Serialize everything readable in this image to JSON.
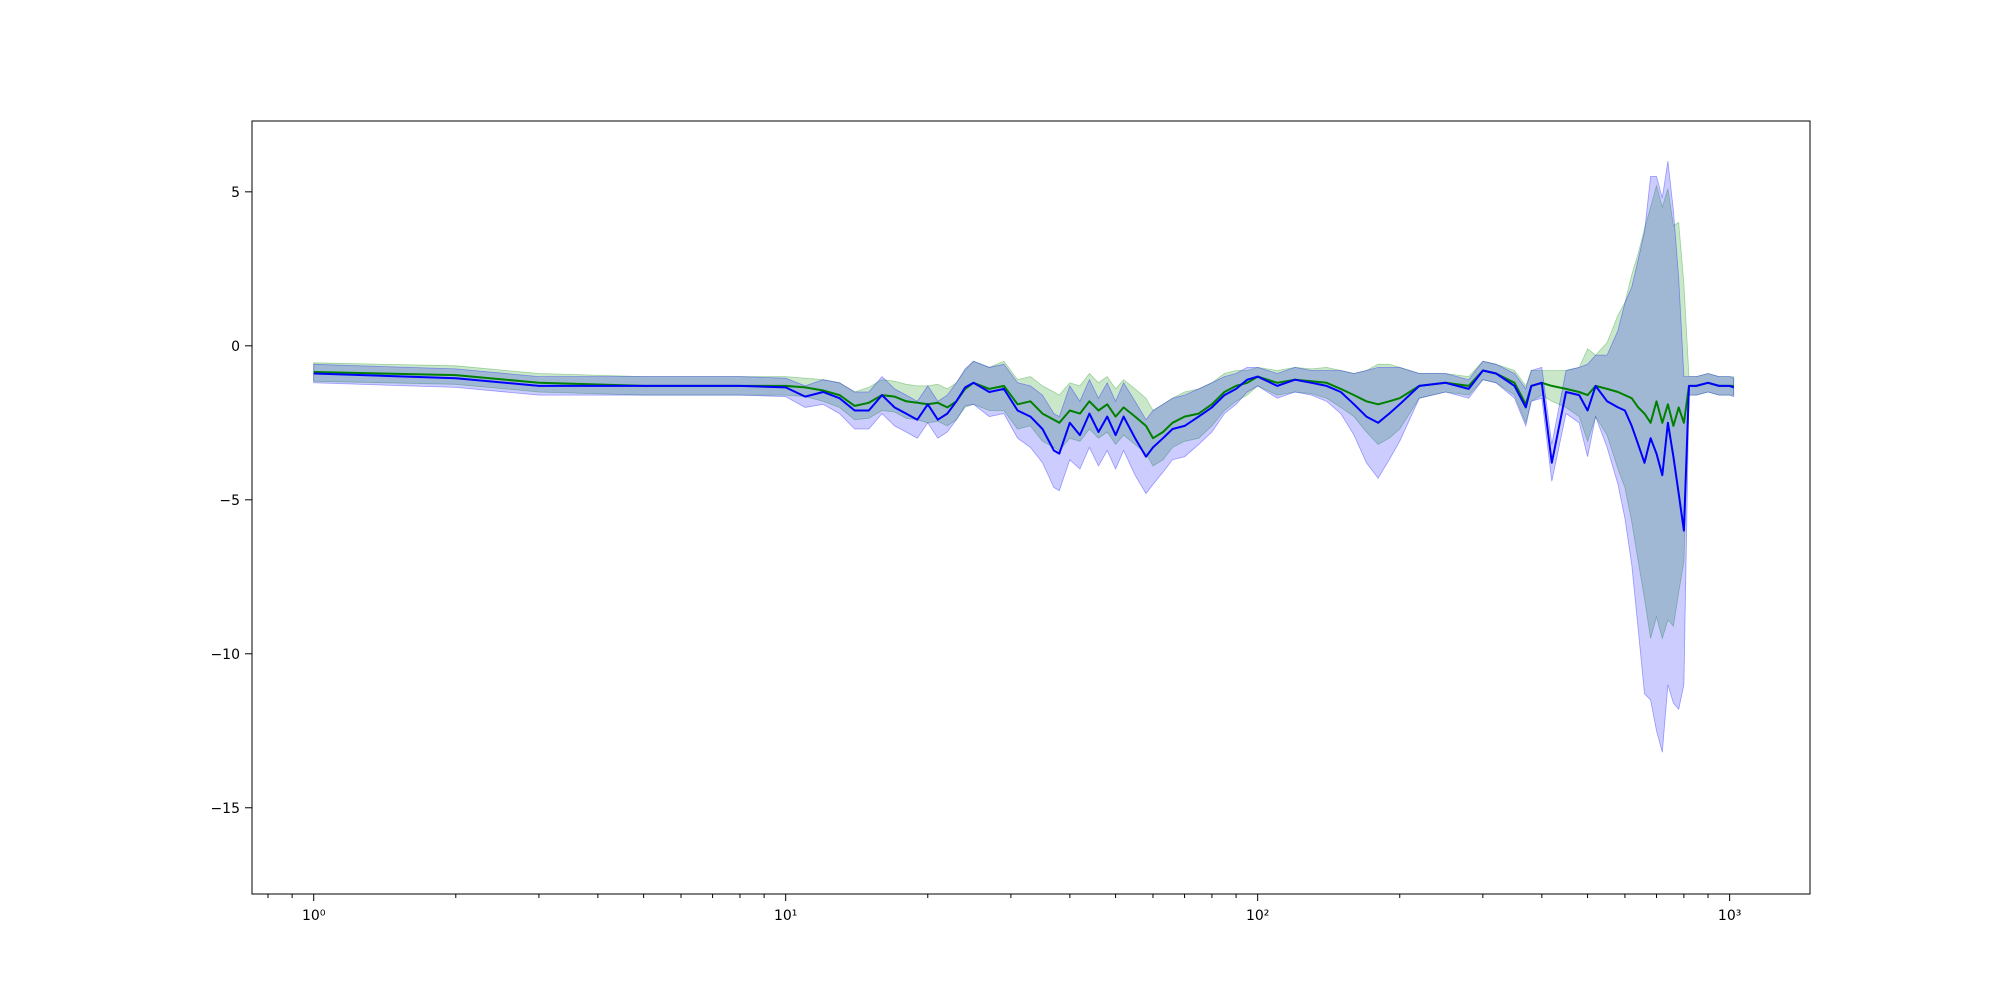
{
  "chart_data": {
    "type": "line",
    "title": "",
    "xlabel": "",
    "ylabel": "",
    "xscale": "log",
    "xlim": [
      0.74,
      1480
    ],
    "ylim": [
      -17.8,
      7.3
    ],
    "grid": false,
    "legend": "none",
    "x_ticks": [
      {
        "value": 1,
        "label": "10⁰"
      },
      {
        "value": 10,
        "label": "10¹"
      },
      {
        "value": 100,
        "label": "10²"
      },
      {
        "value": 1000,
        "label": "10³"
      }
    ],
    "y_ticks": [
      {
        "value": 5,
        "label": "5"
      },
      {
        "value": 0,
        "label": "0"
      },
      {
        "value": -5,
        "label": "−5"
      },
      {
        "value": -10,
        "label": "−10"
      },
      {
        "value": -15,
        "label": "−15"
      }
    ],
    "series": [
      {
        "color": "#008000",
        "band_color": "#2ca02c",
        "band_opacity": 0.25,
        "x": [
          1,
          2,
          3,
          5,
          8,
          10,
          11,
          12,
          13,
          14,
          15,
          16,
          17,
          18,
          19,
          20,
          21,
          22,
          23,
          24,
          25,
          27,
          29,
          31,
          33,
          35,
          37,
          38,
          40,
          42,
          44,
          46,
          48,
          50,
          52,
          55,
          58,
          60,
          63,
          66,
          70,
          75,
          80,
          85,
          90,
          95,
          100,
          110,
          120,
          130,
          140,
          150,
          160,
          170,
          180,
          190,
          200,
          220,
          250,
          280,
          300,
          320,
          350,
          370,
          380,
          400,
          420,
          450,
          480,
          500,
          520,
          550,
          580,
          600,
          620,
          640,
          660,
          680,
          700,
          720,
          740,
          760,
          780,
          800,
          820,
          850,
          900,
          950,
          1000,
          1020
        ],
        "y": [
          -0.85,
          -0.95,
          -1.2,
          -1.3,
          -1.3,
          -1.3,
          -1.35,
          -1.45,
          -1.6,
          -1.95,
          -1.85,
          -1.6,
          -1.65,
          -1.8,
          -1.85,
          -1.9,
          -1.85,
          -2.0,
          -1.8,
          -1.4,
          -1.2,
          -1.4,
          -1.3,
          -1.9,
          -1.8,
          -2.2,
          -2.4,
          -2.5,
          -2.1,
          -2.2,
          -1.8,
          -2.1,
          -1.9,
          -2.3,
          -2.0,
          -2.3,
          -2.6,
          -3.0,
          -2.8,
          -2.5,
          -2.3,
          -2.2,
          -1.9,
          -1.5,
          -1.3,
          -1.2,
          -1.0,
          -1.2,
          -1.1,
          -1.15,
          -1.2,
          -1.4,
          -1.6,
          -1.8,
          -1.9,
          -1.8,
          -1.7,
          -1.3,
          -1.2,
          -1.3,
          -0.8,
          -0.9,
          -1.2,
          -1.9,
          -1.3,
          -1.2,
          -1.3,
          -1.4,
          -1.5,
          -1.6,
          -1.3,
          -1.4,
          -1.5,
          -1.6,
          -1.7,
          -2.0,
          -2.2,
          -2.5,
          -1.8,
          -2.5,
          -1.9,
          -2.6,
          -2.0,
          -2.5,
          -1.3,
          -1.3,
          -1.2,
          -1.3,
          -1.3,
          -1.3
        ],
        "band_half_width": [
          0.3,
          0.3,
          0.3,
          0.3,
          0.3,
          0.3,
          0.3,
          0.35,
          0.4,
          0.45,
          0.5,
          0.5,
          0.5,
          0.55,
          0.55,
          0.6,
          0.6,
          0.6,
          0.6,
          0.6,
          0.7,
          0.7,
          0.8,
          0.8,
          0.8,
          0.9,
          0.9,
          0.9,
          0.9,
          0.9,
          0.9,
          0.9,
          0.9,
          0.9,
          0.9,
          0.9,
          0.9,
          0.9,
          0.9,
          0.8,
          0.8,
          0.8,
          0.7,
          0.6,
          0.5,
          0.4,
          0.3,
          0.4,
          0.4,
          0.4,
          0.5,
          0.6,
          0.7,
          1.0,
          1.3,
          1.2,
          1.0,
          0.4,
          0.3,
          0.3,
          0.3,
          0.3,
          0.4,
          0.6,
          0.5,
          0.4,
          0.5,
          0.6,
          0.8,
          1.5,
          1.0,
          1.5,
          2.5,
          3.0,
          4.0,
          5.0,
          6.0,
          7.0,
          7.0,
          7.0,
          7.0,
          6.5,
          6.0,
          4.5,
          0.3,
          0.3,
          0.3,
          0.3,
          0.3,
          0.3
        ]
      },
      {
        "color": "#0000ff",
        "band_color": "#0000ff",
        "band_opacity": 0.2,
        "x": [
          1,
          2,
          3,
          5,
          8,
          10,
          11,
          12,
          13,
          14,
          15,
          16,
          17,
          18,
          19,
          20,
          21,
          22,
          23,
          24,
          25,
          27,
          29,
          31,
          33,
          35,
          37,
          38,
          40,
          42,
          44,
          46,
          48,
          50,
          52,
          55,
          58,
          60,
          63,
          66,
          70,
          75,
          80,
          85,
          90,
          95,
          100,
          110,
          120,
          130,
          140,
          150,
          160,
          170,
          180,
          190,
          200,
          220,
          250,
          280,
          300,
          320,
          350,
          370,
          380,
          400,
          420,
          450,
          480,
          500,
          520,
          550,
          580,
          600,
          620,
          640,
          660,
          680,
          700,
          720,
          740,
          760,
          780,
          800,
          820,
          850,
          900,
          950,
          1000,
          1020
        ],
        "y": [
          -0.9,
          -1.05,
          -1.3,
          -1.3,
          -1.3,
          -1.35,
          -1.65,
          -1.5,
          -1.7,
          -2.1,
          -2.1,
          -1.6,
          -2.0,
          -2.2,
          -2.4,
          -1.9,
          -2.4,
          -2.2,
          -1.8,
          -1.35,
          -1.2,
          -1.5,
          -1.4,
          -2.1,
          -2.3,
          -2.7,
          -3.4,
          -3.5,
          -2.5,
          -2.9,
          -2.2,
          -2.8,
          -2.3,
          -2.9,
          -2.3,
          -3.0,
          -3.6,
          -3.3,
          -3.0,
          -2.7,
          -2.6,
          -2.3,
          -2.0,
          -1.6,
          -1.4,
          -1.1,
          -1.0,
          -1.3,
          -1.1,
          -1.2,
          -1.3,
          -1.5,
          -1.9,
          -2.3,
          -2.5,
          -2.2,
          -1.9,
          -1.3,
          -1.2,
          -1.4,
          -0.8,
          -0.9,
          -1.3,
          -2.0,
          -1.3,
          -1.2,
          -3.8,
          -1.5,
          -1.6,
          -2.1,
          -1.3,
          -1.8,
          -2.0,
          -2.1,
          -2.6,
          -3.2,
          -3.8,
          -3.0,
          -3.5,
          -4.2,
          -2.5,
          -3.6,
          -4.8,
          -6.0,
          -1.3,
          -1.3,
          -1.2,
          -1.3,
          -1.3,
          -1.35
        ],
        "band_half_width": [
          0.3,
          0.3,
          0.3,
          0.3,
          0.3,
          0.3,
          0.35,
          0.4,
          0.5,
          0.6,
          0.6,
          0.6,
          0.6,
          0.6,
          0.6,
          0.6,
          0.6,
          0.6,
          0.6,
          0.6,
          0.7,
          0.8,
          0.8,
          0.9,
          1.0,
          1.1,
          1.2,
          1.2,
          1.2,
          1.1,
          1.1,
          1.1,
          1.1,
          1.1,
          1.1,
          1.2,
          1.2,
          1.2,
          1.1,
          1.0,
          1.0,
          0.9,
          0.8,
          0.6,
          0.5,
          0.4,
          0.3,
          0.4,
          0.4,
          0.4,
          0.5,
          0.7,
          1.0,
          1.5,
          1.8,
          1.5,
          1.2,
          0.4,
          0.3,
          0.3,
          0.3,
          0.3,
          0.4,
          0.6,
          0.5,
          0.5,
          0.6,
          0.7,
          0.9,
          1.5,
          1.0,
          1.5,
          2.5,
          3.5,
          4.5,
          6.0,
          7.5,
          8.5,
          9.0,
          9.0,
          8.5,
          8.0,
          7.0,
          5.0,
          0.3,
          0.3,
          0.3,
          0.3,
          0.3,
          0.3
        ]
      }
    ]
  }
}
